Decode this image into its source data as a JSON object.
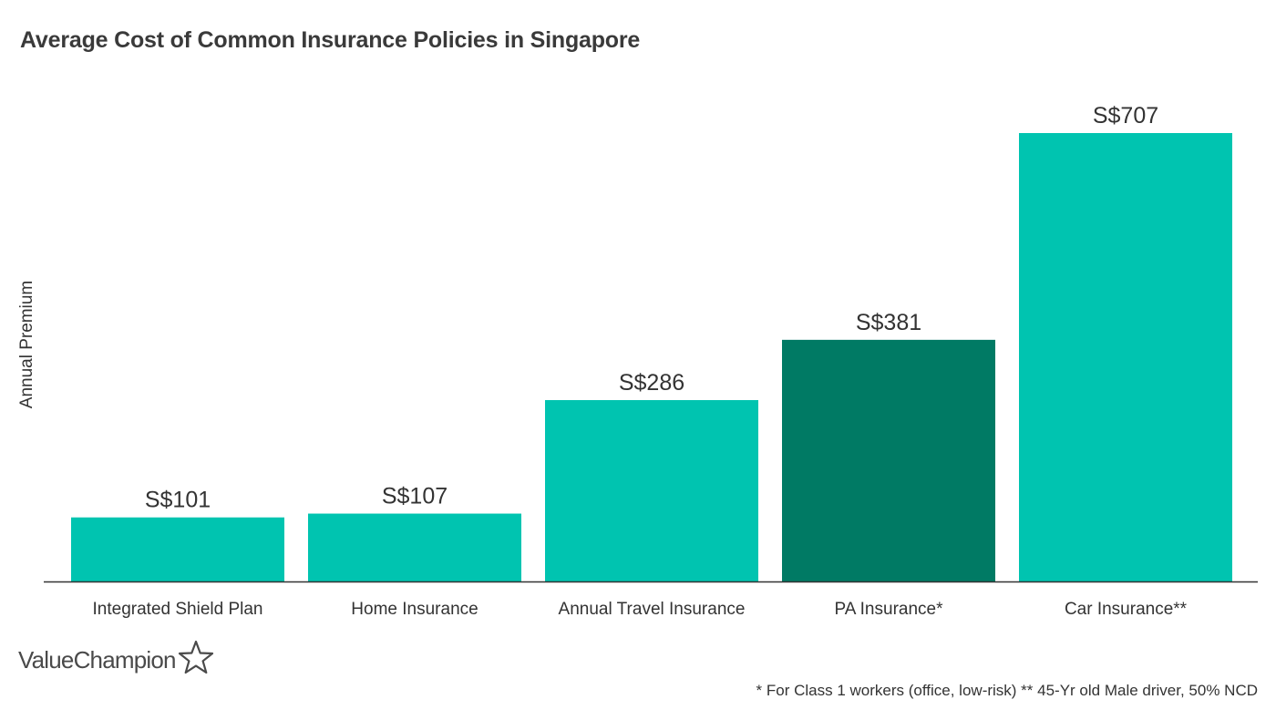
{
  "chart_data": {
    "type": "bar",
    "title": "Average Cost of Common Insurance Policies in Singapore",
    "xlabel": "",
    "ylabel": "Annual Premium",
    "categories": [
      "Integrated Shield Plan",
      "Home Insurance",
      "Annual Travel Insurance",
      "PA Insurance*",
      "Car Insurance**"
    ],
    "values": [
      101,
      107,
      286,
      381,
      707
    ],
    "value_labels": [
      "S$101",
      "S$107",
      "S$286",
      "S$381",
      "S$707"
    ],
    "highlight_index": 3,
    "ylim": [
      0,
      707
    ],
    "grid": false,
    "colors": {
      "bar": "#00c4b0",
      "highlight": "#007a64",
      "axis": "#333333"
    }
  },
  "footnote": "* For Class 1 workers (office, low-risk) ** 45-Yr old Male driver, 50% NCD",
  "brand": {
    "logo_text": "ValueChampion"
  }
}
